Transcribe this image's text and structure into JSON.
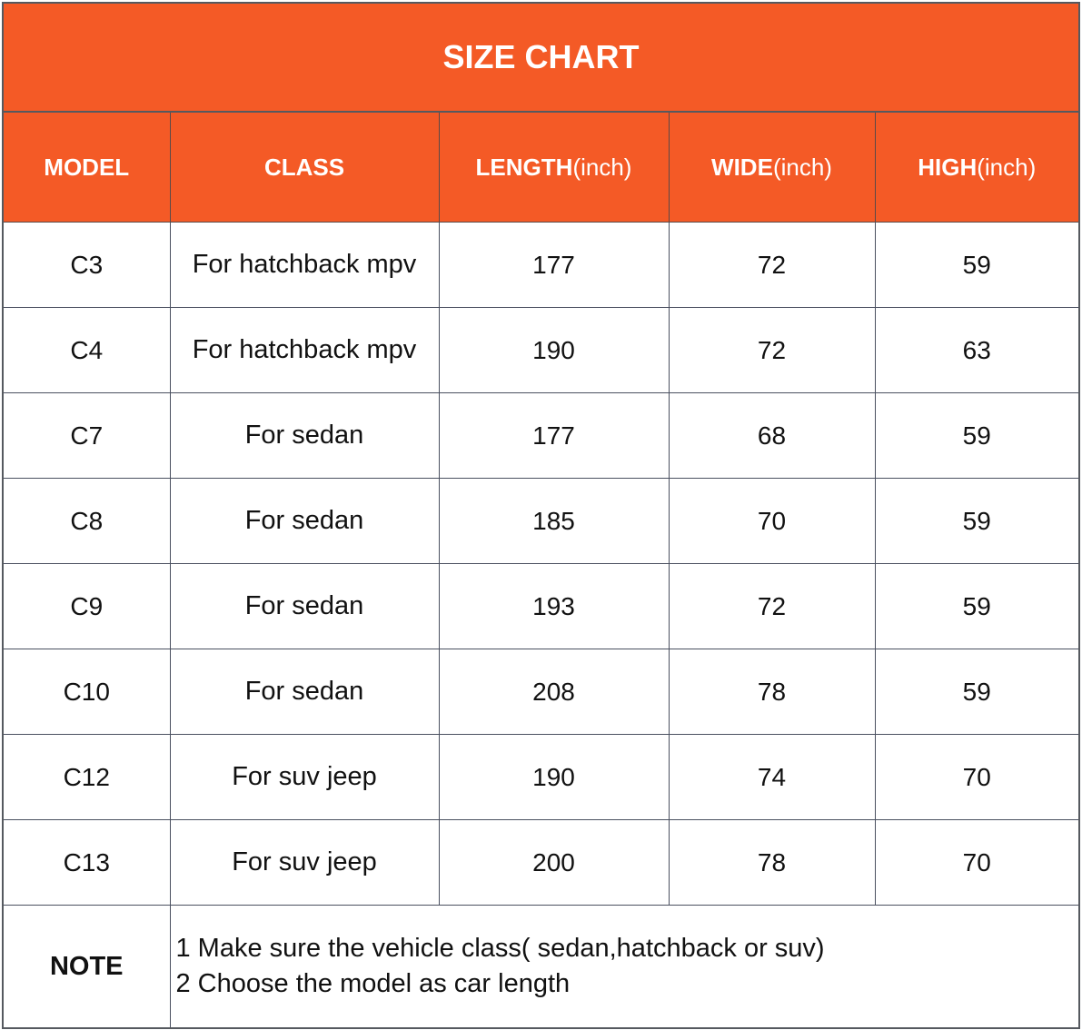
{
  "title": "SIZE CHART",
  "columns": [
    {
      "bold": "MODEL",
      "unit": ""
    },
    {
      "bold": "CLASS",
      "unit": ""
    },
    {
      "bold": "LENGTH",
      "unit": "(inch)"
    },
    {
      "bold": "WIDE",
      "unit": "(inch)"
    },
    {
      "bold": "HIGH",
      "unit": "(inch)"
    }
  ],
  "rows": [
    [
      "C3",
      "For hatchback mpv",
      "177",
      "72",
      "59"
    ],
    [
      "C4",
      "For hatchback mpv",
      "190",
      "72",
      "63"
    ],
    [
      "C7",
      "For sedan",
      "177",
      "68",
      "59"
    ],
    [
      "C8",
      "For sedan",
      "185",
      "70",
      "59"
    ],
    [
      "C9",
      "For sedan",
      "193",
      "72",
      "59"
    ],
    [
      "C10",
      "For sedan",
      "208",
      "78",
      "59"
    ],
    [
      "C12",
      "For suv jeep",
      "190",
      "74",
      "70"
    ],
    [
      "C13",
      "For suv jeep",
      "200",
      "78",
      "70"
    ]
  ],
  "note": {
    "label": "NOTE",
    "lines": [
      "1 Make sure the vehicle class( sedan,hatchback or suv)",
      "2 Choose the model as car length"
    ]
  },
  "colors": {
    "header_bg": "#f45a26",
    "header_text": "#ffffff"
  }
}
